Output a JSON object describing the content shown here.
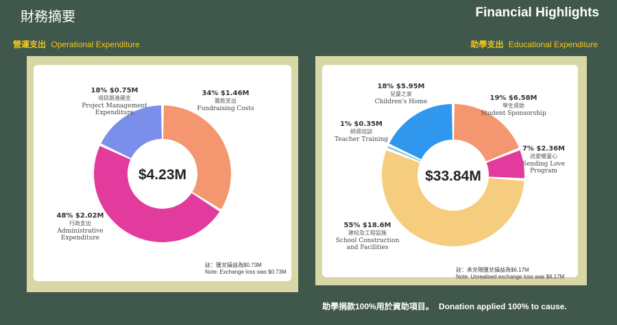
{
  "header": {
    "title_zh": "財務摘要",
    "title_en": "Financial Highlights"
  },
  "left_section": {
    "label_zh": "營運支出",
    "label_en": "Operational Expenditure"
  },
  "right_section": {
    "label_zh": "助學支出",
    "label_en": "Educational Expenditure"
  },
  "notes": {
    "left_zh": "註：匯兌損益為$0.73M",
    "left_en": "Note: Exchange loss was $0.73M",
    "right_zh": "註：未兌現匯兌損益為$6.17M",
    "right_en": "Note: Unrealised exchange loss was $6.17M"
  },
  "footer": {
    "zh": "助學捐款100%用於資助項目。",
    "en": "Donation applied 100% to cause."
  },
  "chart_data": [
    {
      "type": "pie",
      "title": "",
      "center_label": "$4.23M",
      "slices": [
        {
          "head": "34%  $1.46M",
          "zh": "籌款支出",
          "en": [
            "Fundraising Costs"
          ],
          "value": 34,
          "color": "#f4966f"
        },
        {
          "head": "48%  $2.02M",
          "zh": "行政支出",
          "en": [
            "Administrative",
            "Expenditure"
          ],
          "value": 48,
          "color": "#e23b9d"
        },
        {
          "head": "18%  $0.75M",
          "zh": "項目跟進開支",
          "en": [
            "Project Management",
            "Expenditure"
          ],
          "value": 18,
          "color": "#7b8eea"
        }
      ]
    },
    {
      "type": "pie",
      "title": "",
      "center_label": "$33.84M",
      "slices": [
        {
          "head": "19%  $6.58M",
          "zh": "學生資助",
          "en": [
            "Student Sponsorship"
          ],
          "value": 19,
          "color": "#f4966f"
        },
        {
          "head": "7%  $2.36M",
          "zh": "送愛暖童心",
          "en": [
            "Sending Love",
            "Program"
          ],
          "value": 7,
          "color": "#e23b9d"
        },
        {
          "head": "55%  $18.6M",
          "zh": "建校及工程設施",
          "en": [
            "School Construction",
            "and Facilities"
          ],
          "value": 55,
          "color": "#f6cd7e"
        },
        {
          "head": "1%  $0.35M",
          "zh": "師資培訓",
          "en": [
            "Teacher Training"
          ],
          "value": 1,
          "color": "#66bfe8"
        },
        {
          "head": "18%  $5.95M",
          "zh": "兒童之家",
          "en": [
            "Children's Home"
          ],
          "value": 18,
          "color": "#2f97ee"
        }
      ]
    }
  ]
}
